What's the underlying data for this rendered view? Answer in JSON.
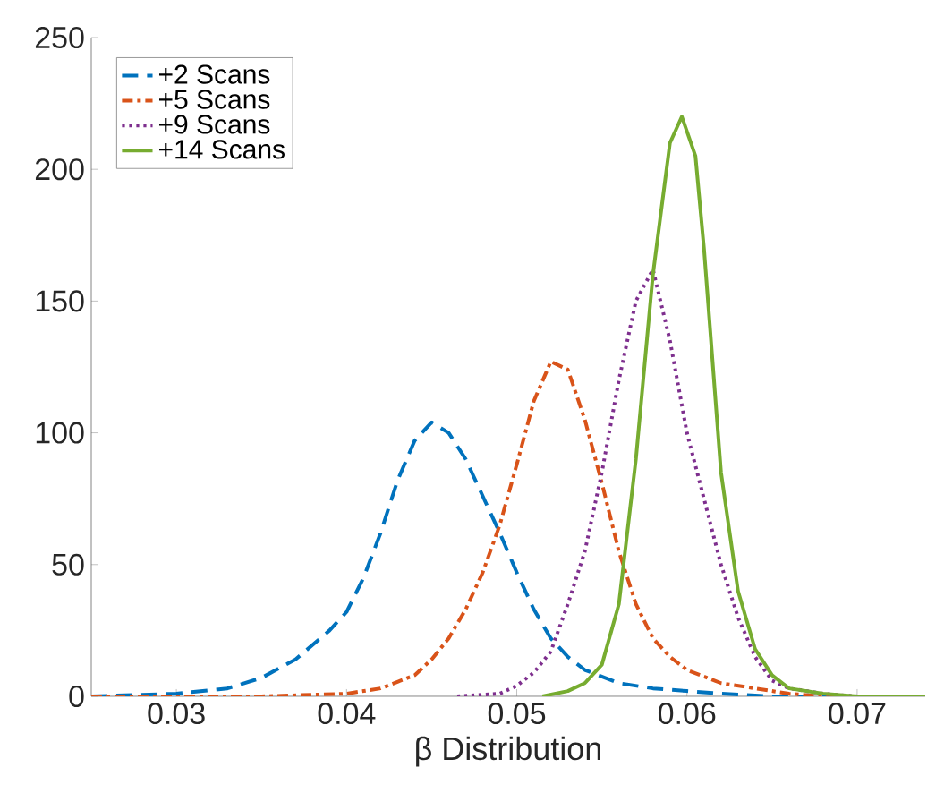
{
  "chart_data": {
    "type": "line",
    "xlabel": "β Distribution",
    "xlim": [
      0.025,
      0.074
    ],
    "xticks": [
      0.03,
      0.04,
      0.05,
      0.06,
      0.07
    ],
    "ylim": [
      0,
      250
    ],
    "yticks": [
      0,
      50,
      100,
      150,
      200,
      250
    ],
    "grid": false,
    "legend": "top left",
    "marker": "none",
    "series": [
      {
        "name": "+2 Scans",
        "color": "#0072bd",
        "line_style": "dashed",
        "x": [
          0.025,
          0.03,
          0.033,
          0.035,
          0.037,
          0.039,
          0.04,
          0.041,
          0.042,
          0.043,
          0.044,
          0.045,
          0.046,
          0.047,
          0.048,
          0.049,
          0.05,
          0.051,
          0.052,
          0.053,
          0.054,
          0.056,
          0.058,
          0.06,
          0.062,
          0.065,
          0.074
        ],
        "values": [
          0,
          1,
          3,
          7,
          14,
          25,
          32,
          45,
          62,
          82,
          97,
          104,
          100,
          90,
          76,
          62,
          47,
          33,
          22,
          15,
          10,
          5,
          3,
          2,
          1,
          0,
          0
        ]
      },
      {
        "name": "+5 Scans",
        "color": "#d95319",
        "line_style": "dashdot",
        "x": [
          0.025,
          0.035,
          0.04,
          0.042,
          0.044,
          0.045,
          0.046,
          0.047,
          0.048,
          0.049,
          0.05,
          0.051,
          0.052,
          0.053,
          0.054,
          0.055,
          0.056,
          0.057,
          0.058,
          0.059,
          0.06,
          0.062,
          0.064,
          0.066,
          0.068,
          0.074
        ],
        "values": [
          0,
          0,
          1,
          3,
          8,
          14,
          22,
          33,
          47,
          65,
          88,
          112,
          127,
          124,
          105,
          81,
          55,
          35,
          22,
          15,
          10,
          5,
          3,
          1,
          0,
          0
        ]
      },
      {
        "name": "+9 Scans",
        "color": "#7e2f8e",
        "line_style": "dotted",
        "x": [
          0.0465,
          0.049,
          0.05,
          0.051,
          0.052,
          0.053,
          0.054,
          0.055,
          0.056,
          0.057,
          0.058,
          0.059,
          0.06,
          0.061,
          0.062,
          0.063,
          0.064,
          0.065,
          0.066,
          0.068,
          0.07,
          0.074
        ],
        "values": [
          0,
          1,
          4,
          9,
          17,
          35,
          55,
          85,
          120,
          150,
          162,
          135,
          100,
          75,
          50,
          30,
          15,
          6,
          3,
          1,
          0,
          0
        ]
      },
      {
        "name": "+14 Scans",
        "color": "#77ac30",
        "line_style": "solid",
        "x": [
          0.0515,
          0.053,
          0.054,
          0.055,
          0.056,
          0.057,
          0.058,
          0.059,
          0.0597,
          0.0605,
          0.061,
          0.062,
          0.063,
          0.064,
          0.065,
          0.066,
          0.068,
          0.07,
          0.074
        ],
        "values": [
          0,
          2,
          5,
          12,
          35,
          90,
          160,
          210,
          220,
          205,
          170,
          85,
          40,
          18,
          8,
          3,
          1,
          0,
          0
        ]
      }
    ]
  }
}
